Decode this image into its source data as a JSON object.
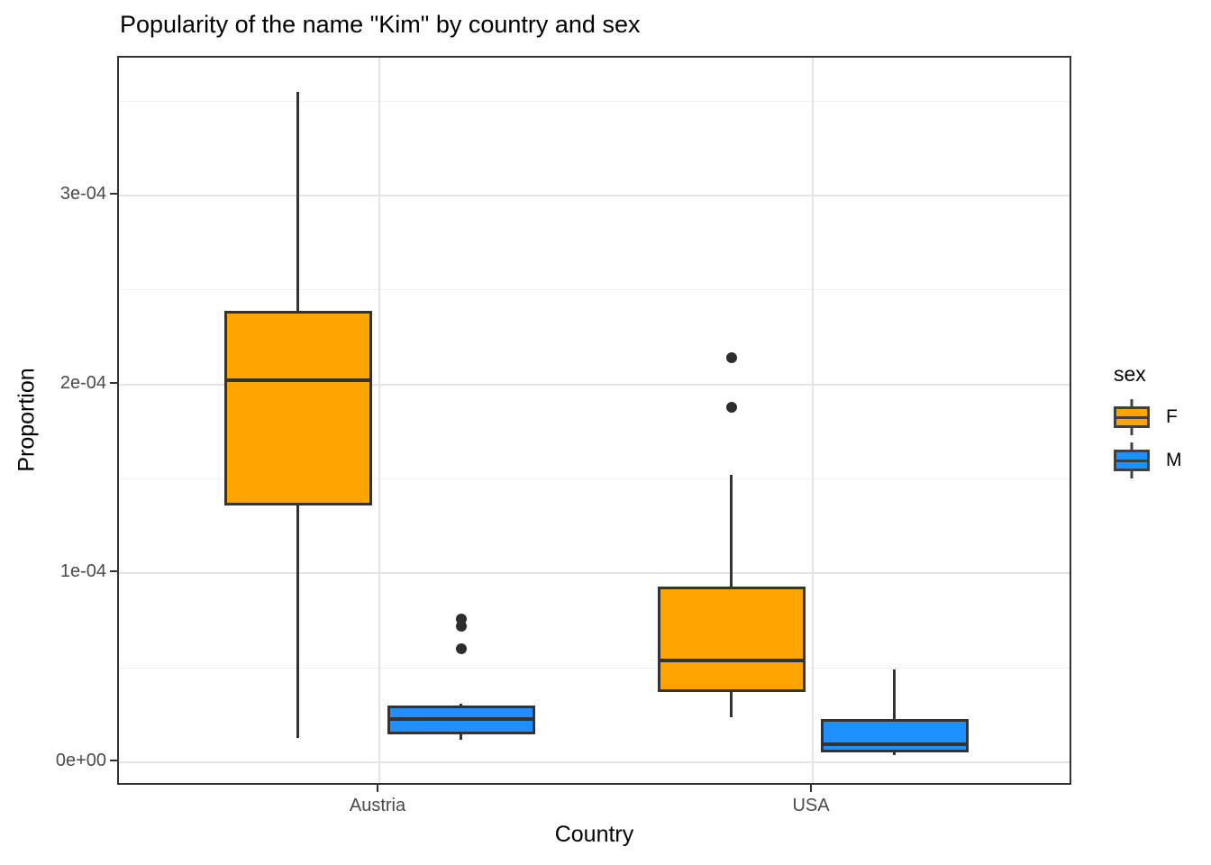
{
  "chart_data": {
    "type": "boxplot",
    "title": "Popularity of the name \"Kim\" by country and sex",
    "xlabel": "Country",
    "ylabel": "Proportion",
    "categories": [
      "Austria",
      "USA"
    ],
    "y_ticks": [
      {
        "value": 0.0,
        "label": "0e+00"
      },
      {
        "value": 0.0001,
        "label": "1e-04"
      },
      {
        "value": 0.0002,
        "label": "2e-04"
      },
      {
        "value": 0.0003,
        "label": "3e-04"
      }
    ],
    "y_minor_ticks": [
      5e-05,
      0.00015,
      0.00025,
      0.00035
    ],
    "ylim": [
      -1.43e-05,
      0.000373
    ],
    "grid": true,
    "panel_border_color": "#333333",
    "box_outline_color": "#333333",
    "legend": {
      "title": "sex",
      "position": "right",
      "entries": [
        {
          "label": "F",
          "color": "#FFA500"
        },
        {
          "label": "M",
          "color": "#1E90FF"
        }
      ]
    },
    "series": [
      {
        "name": "F",
        "color": "#FFA500",
        "boxes": [
          {
            "category": "Austria",
            "whisker_low": 1.3e-05,
            "q1": 0.000136,
            "median": 0.000202,
            "q3": 0.000239,
            "whisker_high": 0.000355,
            "outliers": []
          },
          {
            "category": "USA",
            "whisker_low": 2.4e-05,
            "q1": 3.7e-05,
            "median": 5.4e-05,
            "q3": 9.3e-05,
            "whisker_high": 0.000152,
            "outliers": [
              0.000188,
              0.000214
            ]
          }
        ]
      },
      {
        "name": "M",
        "color": "#1E90FF",
        "boxes": [
          {
            "category": "Austria",
            "whisker_low": 1.2e-05,
            "q1": 1.5e-05,
            "median": 2.3e-05,
            "q3": 3e-05,
            "whisker_high": 3.1e-05,
            "outliers": [
              6e-05,
              7.2e-05,
              7.6e-05
            ]
          },
          {
            "category": "USA",
            "whisker_low": 3.8e-06,
            "q1": 5.2e-06,
            "median": 9.5e-06,
            "q3": 2.3e-05,
            "whisker_high": 4.9e-05,
            "outliers": []
          }
        ]
      }
    ]
  }
}
